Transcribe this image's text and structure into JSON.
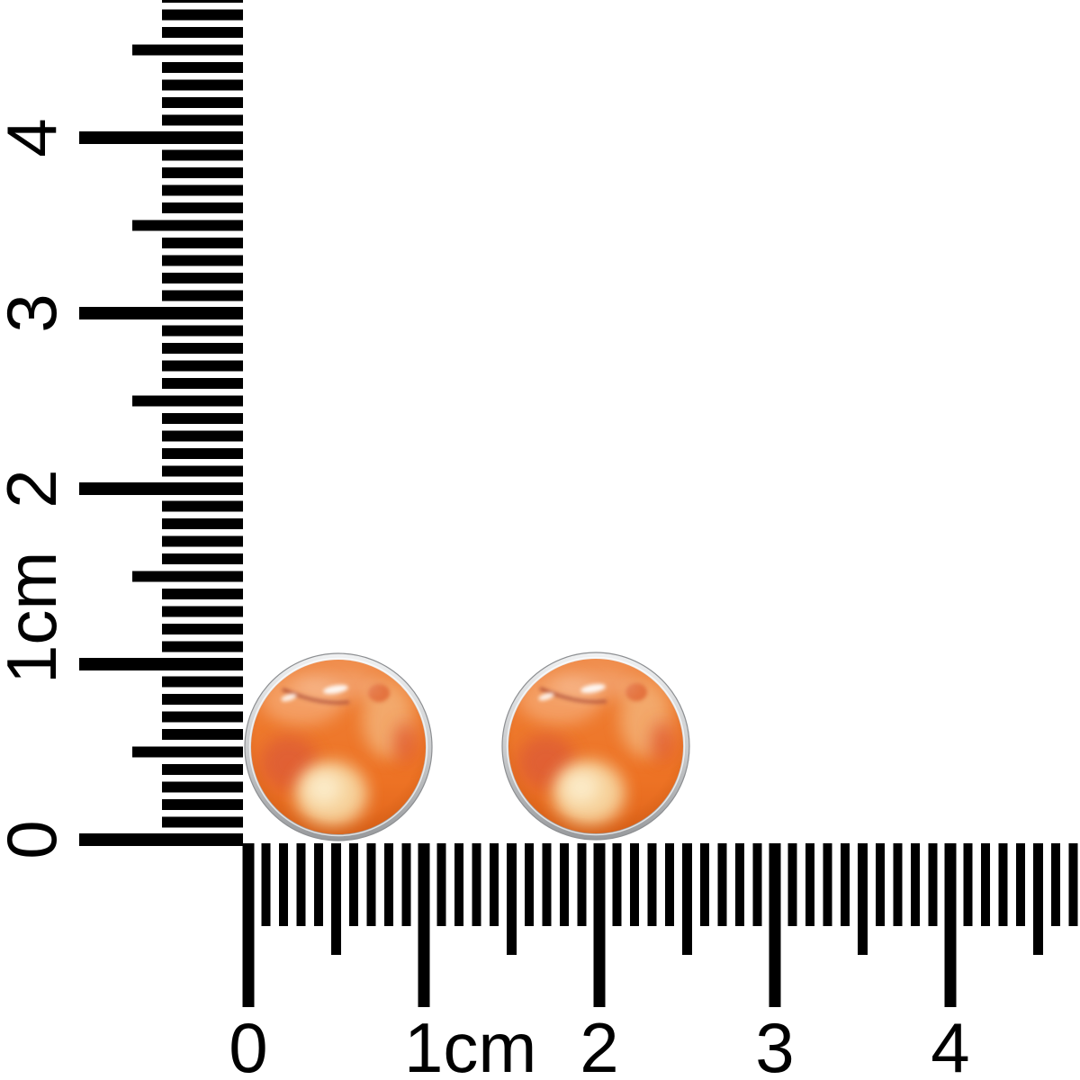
{
  "scene": {
    "type": "product measurement photo",
    "background_color": "#ffffff"
  },
  "rulers": {
    "color": "#000000",
    "unit": "cm",
    "vertical": {
      "orientation": "vertical, left side, labels rotated 90deg CCW",
      "labels": [
        {
          "text": "0",
          "cm": 0
        },
        {
          "text": "1cm",
          "cm": 1
        },
        {
          "text": "2",
          "cm": 2
        },
        {
          "text": "3",
          "cm": 3
        },
        {
          "text": "4",
          "cm": 4
        }
      ],
      "visible_range_cm": [
        0,
        4.7
      ]
    },
    "horizontal": {
      "orientation": "horizontal, bottom side",
      "labels": [
        {
          "text": "0",
          "cm": 0
        },
        {
          "text": "1cm",
          "cm": 1
        },
        {
          "text": "2",
          "cm": 2
        },
        {
          "text": "3",
          "cm": 3
        },
        {
          "text": "4",
          "cm": 4
        }
      ],
      "visible_range_cm": [
        0,
        4.7
      ]
    }
  },
  "product": {
    "name": "carnelian stud earrings",
    "description": "Pair of round orange carnelian gemstone stud earrings in silver bezel settings, shown at roughly 1 cm diameter against cm/mm rulers",
    "count": 2,
    "stone_colors": {
      "base_orange": "#ed7426",
      "salmon_light": "#f4a269",
      "peach_band": "#f3ad72",
      "cream_patch": "#f8dca8",
      "red_patch": "#dc5a37",
      "dark_streak": "#a53f2c",
      "specular_highlight": "#ffffff"
    },
    "bezel_colors": {
      "light": "#f0f1f2",
      "mid": "#c7c9cb",
      "dark": "#97999c"
    }
  }
}
